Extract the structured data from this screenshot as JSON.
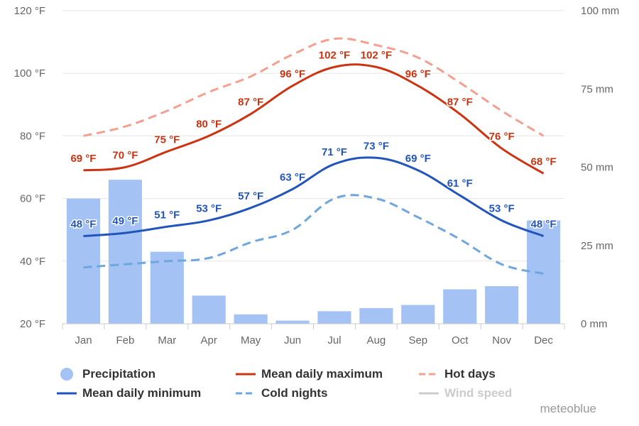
{
  "chart_data": {
    "type": "bar+line",
    "categories": [
      "Jan",
      "Feb",
      "Mar",
      "Apr",
      "May",
      "Jun",
      "Jul",
      "Aug",
      "Sep",
      "Oct",
      "Nov",
      "Dec"
    ],
    "y_left": {
      "ticks": [
        "20 °F",
        "40 °F",
        "60 °F",
        "80 °F",
        "100 °F",
        "120 °F"
      ],
      "range": [
        20,
        120
      ],
      "unit": "°F"
    },
    "y_right": {
      "ticks": [
        "0 mm",
        "25 mm",
        "50 mm",
        "75 mm",
        "100 mm"
      ],
      "range": [
        0,
        100
      ],
      "unit": "mm"
    },
    "series": [
      {
        "name": "Precipitation",
        "type": "bar",
        "axis": "right",
        "color": "#a4c2f4",
        "values": [
          40,
          46,
          23,
          9,
          3,
          1,
          4,
          5,
          6,
          11,
          12,
          33
        ]
      },
      {
        "name": "Mean daily maximum",
        "type": "line",
        "axis": "left",
        "color": "#cc3311",
        "dash": "solid",
        "values": [
          69,
          70,
          75,
          80,
          87,
          96,
          102,
          102,
          96,
          87,
          76,
          68
        ],
        "labels": [
          "69 °F",
          "70 °F",
          "75 °F",
          "80 °F",
          "87 °F",
          "96 °F",
          "102 °F",
          "102 °F",
          "96 °F",
          "87 °F",
          "76 °F",
          "68 °F"
        ]
      },
      {
        "name": "Hot days",
        "type": "line",
        "axis": "left",
        "color": "#f4a090",
        "dash": "dashed",
        "values": [
          80,
          83,
          88,
          94,
          99,
          106,
          111,
          109,
          105,
          97,
          88,
          80
        ]
      },
      {
        "name": "Mean daily minimum",
        "type": "line",
        "axis": "left",
        "color": "#2255bb",
        "dash": "solid",
        "values": [
          48,
          49,
          51,
          53,
          57,
          63,
          71,
          73,
          69,
          61,
          53,
          48
        ],
        "labels": [
          "48 °F",
          "49 °F",
          "51 °F",
          "53 °F",
          "57 °F",
          "63 °F",
          "71 °F",
          "73 °F",
          "69 °F",
          "61 °F",
          "53 °F",
          "48 °F"
        ]
      },
      {
        "name": "Cold nights",
        "type": "line",
        "axis": "left",
        "color": "#6ea6dd",
        "dash": "dashed",
        "values": [
          38,
          39,
          40,
          41,
          46,
          50,
          60,
          60,
          54,
          47,
          39,
          36
        ]
      }
    ],
    "legend": {
      "position": "bottom",
      "items": [
        {
          "name": "Precipitation",
          "symbol": "dot",
          "color": "#a4c2f4",
          "enabled": true
        },
        {
          "name": "Mean daily maximum",
          "symbol": "line",
          "color": "#cc3311",
          "enabled": true
        },
        {
          "name": "Hot days",
          "symbol": "dash",
          "color": "#f4a090",
          "enabled": true
        },
        {
          "name": "Mean daily minimum",
          "symbol": "line",
          "color": "#2255bb",
          "enabled": true
        },
        {
          "name": "Cold nights",
          "symbol": "dash",
          "color": "#6ea6dd",
          "enabled": true
        },
        {
          "name": "Wind speed",
          "symbol": "line",
          "color": "#cccccc",
          "enabled": false
        }
      ]
    },
    "grid": true,
    "credit": "meteoblue"
  }
}
